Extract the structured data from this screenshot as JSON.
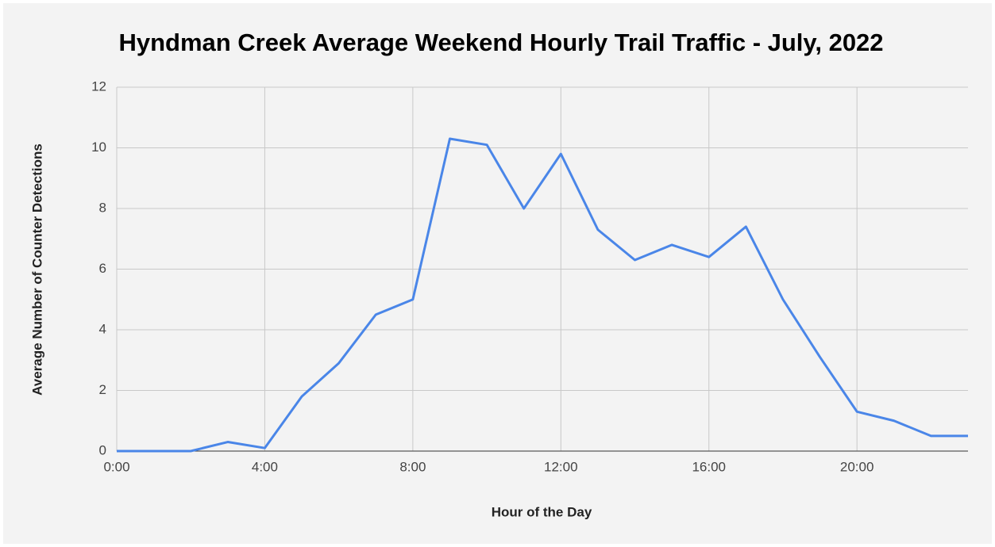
{
  "chart_data": {
    "type": "line",
    "title": "Hyndman Creek Average Weekend Hourly Trail Traffic - July, 2022",
    "xlabel": "Hour of the Day",
    "ylabel": "Average Number of Counter Detections",
    "x": [
      0,
      1,
      2,
      3,
      4,
      5,
      6,
      7,
      8,
      9,
      10,
      11,
      12,
      13,
      14,
      15,
      16,
      17,
      18,
      19,
      20,
      21,
      22,
      23
    ],
    "series": [
      {
        "color": "#4a86e8",
        "values": [
          0,
          0,
          0,
          0.3,
          0.1,
          1.8,
          2.9,
          4.5,
          5.0,
          10.3,
          10.1,
          8.0,
          9.8,
          7.3,
          6.3,
          6.8,
          6.4,
          7.4,
          5.0,
          3.1,
          1.3,
          1.0,
          0.5,
          0.5
        ]
      }
    ],
    "xlim": [
      0,
      23
    ],
    "xticks": [
      {
        "value": 0,
        "label": "0:00"
      },
      {
        "value": 4,
        "label": "4:00"
      },
      {
        "value": 8,
        "label": "8:00"
      },
      {
        "value": 12,
        "label": "12:00"
      },
      {
        "value": 16,
        "label": "16:00"
      },
      {
        "value": 20,
        "label": "20:00"
      }
    ],
    "ylim": [
      0,
      12
    ],
    "yticks": [
      0,
      2,
      4,
      6,
      8,
      10,
      12
    ],
    "grid": true
  }
}
